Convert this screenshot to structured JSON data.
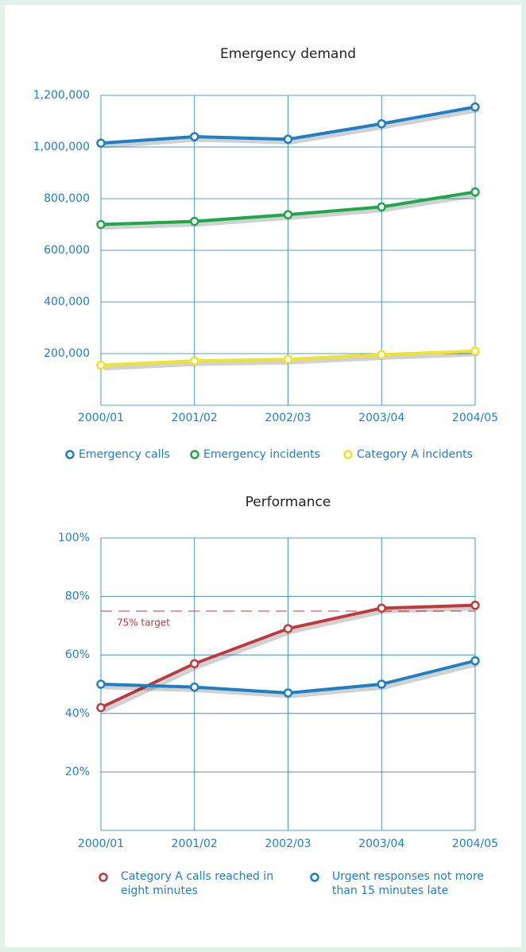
{
  "chart_data": [
    {
      "type": "line",
      "title": "Emergency demand",
      "categories": [
        "2000/01",
        "2001/02",
        "2002/03",
        "2003/04",
        "2004/05"
      ],
      "series": [
        {
          "name": "Emergency calls",
          "color": "#1f7fc4",
          "values": [
            1015000,
            1040000,
            1030000,
            1090000,
            1155000
          ]
        },
        {
          "name": "Emergency incidents",
          "color": "#1fa84a",
          "values": [
            700000,
            712000,
            738000,
            768000,
            826000
          ]
        },
        {
          "name": "Category A incidents",
          "color": "#f0e42a",
          "values": [
            155000,
            172000,
            178000,
            196000,
            210000
          ]
        }
      ],
      "ylim": [
        0,
        1200000
      ],
      "yticks": [
        {
          "value": 200000,
          "label": "200,000"
        },
        {
          "value": 400000,
          "label": "400,000"
        },
        {
          "value": 600000,
          "label": "600,000"
        },
        {
          "value": 800000,
          "label": "800,000"
        },
        {
          "value": 1000000,
          "label": "1,000,000"
        },
        {
          "value": 1200000,
          "label": "1,200,000"
        }
      ],
      "grid": true
    },
    {
      "type": "line",
      "title": "Performance",
      "categories": [
        "2000/01",
        "2001/02",
        "2002/03",
        "2003/04",
        "2004/05"
      ],
      "series": [
        {
          "name": "Category A calls reached in eight minutes",
          "color": "#c0393b",
          "values": [
            42,
            57,
            69,
            76,
            77
          ]
        },
        {
          "name": "Urgent responses not more than 15 minutes late",
          "color": "#1f7fc4",
          "values": [
            50,
            49,
            47,
            50,
            58
          ]
        }
      ],
      "ylim": [
        0,
        100
      ],
      "yticks": [
        {
          "value": 20,
          "label": "20%"
        },
        {
          "value": 40,
          "label": "40%"
        },
        {
          "value": 60,
          "label": "60%"
        },
        {
          "value": 80,
          "label": "80%"
        },
        {
          "value": 100,
          "label": "100%"
        }
      ],
      "reference_line": {
        "value": 75,
        "label": "75% target",
        "color": "#c0393b"
      },
      "grid": true
    }
  ]
}
